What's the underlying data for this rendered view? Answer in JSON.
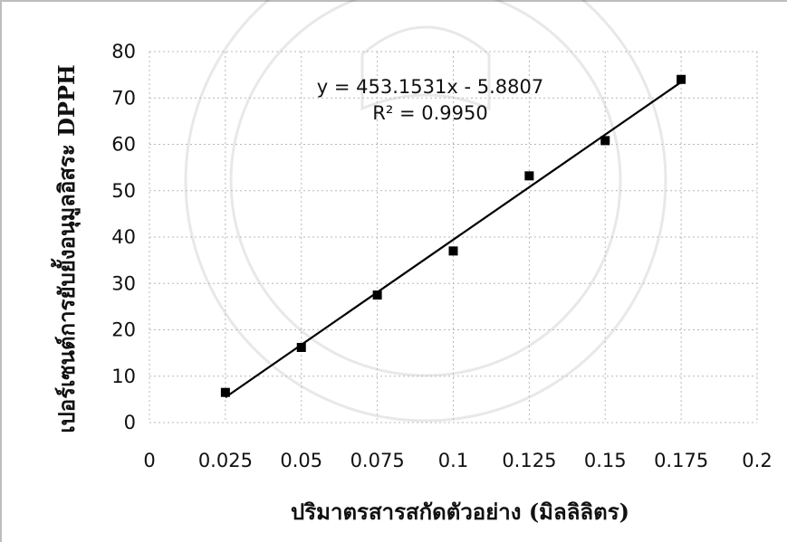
{
  "chart_data": {
    "type": "scatter",
    "title": "",
    "xlabel": "ปริมาตรสารสกัดตัวอย่าง (มิลลิลิตร)",
    "ylabel": "เปอร์เซนต์การยับยั้งอนุมูลอิสระ DPPH",
    "x_ticks": [
      "0",
      "0.025",
      "0.05",
      "0.075",
      "0.1",
      "0.125",
      "0.15",
      "0.175",
      "0.2"
    ],
    "y_ticks": [
      "0",
      "10",
      "20",
      "30",
      "40",
      "50",
      "60",
      "70",
      "80"
    ],
    "xlim": [
      0,
      0.2
    ],
    "ylim": [
      0,
      80
    ],
    "grid": true,
    "series": [
      {
        "x": [
          0.025,
          0.05,
          0.075,
          0.1,
          0.125,
          0.15,
          0.175
        ],
        "y": [
          6.5,
          16.2,
          27.5,
          37.0,
          53.2,
          60.8,
          74.0
        ],
        "marker": "square",
        "color": "#000000"
      }
    ],
    "trendline": {
      "slope": 453.1531,
      "intercept": -5.8807,
      "x_range": [
        0.025,
        0.175
      ],
      "equation": "y = 453.1531x - 5.8807",
      "r_squared": "R² = 0.9950"
    }
  }
}
